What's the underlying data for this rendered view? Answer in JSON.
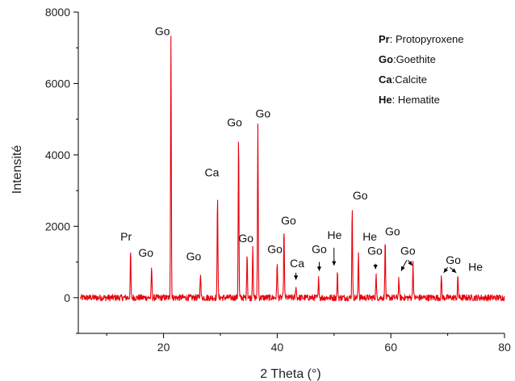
{
  "chart_data": {
    "type": "line",
    "xlabel": "2 Theta (°)",
    "ylabel": "Intensité",
    "xlim": [
      5,
      80
    ],
    "ylim": [
      -1000,
      8000
    ],
    "xticks": [
      "20",
      "40",
      "60",
      "80"
    ],
    "yticks": [
      "0",
      "2000",
      "4000",
      "6000",
      "8000"
    ],
    "xtick_values": [
      20,
      40,
      60,
      80
    ],
    "ytick_values": [
      0,
      2000,
      4000,
      6000,
      8000
    ],
    "line_color": "#e8000b",
    "baseline": 0,
    "noise_amplitude": 90,
    "legend": {
      "position": "top-right",
      "entries": [
        {
          "abbr": "Pr",
          "text": ": Protopyroxene"
        },
        {
          "abbr": "Go",
          "text": ":Goethite"
        },
        {
          "abbr": "Ca",
          "text": ":Calcite"
        },
        {
          "abbr": "He",
          "text": ": Hematite"
        }
      ]
    },
    "peaks": [
      {
        "x": 14.2,
        "y": 1280
      },
      {
        "x": 17.9,
        "y": 850
      },
      {
        "x": 21.3,
        "y": 7350
      },
      {
        "x": 26.5,
        "y": 750
      },
      {
        "x": 29.5,
        "y": 2950
      },
      {
        "x": 33.2,
        "y": 4600
      },
      {
        "x": 34.7,
        "y": 1300
      },
      {
        "x": 35.7,
        "y": 1500
      },
      {
        "x": 36.6,
        "y": 4850
      },
      {
        "x": 40.0,
        "y": 1050
      },
      {
        "x": 41.2,
        "y": 1950
      },
      {
        "x": 43.3,
        "y": 350
      },
      {
        "x": 47.3,
        "y": 550
      },
      {
        "x": 50.6,
        "y": 700
      },
      {
        "x": 53.2,
        "y": 2600
      },
      {
        "x": 54.3,
        "y": 1300
      },
      {
        "x": 57.4,
        "y": 650
      },
      {
        "x": 59.0,
        "y": 1650
      },
      {
        "x": 61.4,
        "y": 550
      },
      {
        "x": 63.9,
        "y": 1000
      },
      {
        "x": 68.9,
        "y": 600
      },
      {
        "x": 71.8,
        "y": 600
      }
    ],
    "annotations": [
      {
        "text": "Go",
        "x": 19.8,
        "y": 7350
      },
      {
        "text": "Pr",
        "x": 13.4,
        "y": 1600
      },
      {
        "text": "Go",
        "x": 16.9,
        "y": 1150
      },
      {
        "text": "Go",
        "x": 25.3,
        "y": 1050
      },
      {
        "text": "Ca",
        "x": 28.5,
        "y": 3400
      },
      {
        "text": "Go",
        "x": 32.5,
        "y": 4800
      },
      {
        "text": "Go",
        "x": 37.5,
        "y": 5050
      },
      {
        "text": "Go",
        "x": 34.5,
        "y": 1550
      },
      {
        "text": "Go",
        "x": 39.6,
        "y": 1250
      },
      {
        "text": "Go",
        "x": 42.0,
        "y": 2050
      },
      {
        "text": "Ca",
        "x": 43.5,
        "y": 850
      },
      {
        "text": "Go",
        "x": 47.4,
        "y": 1250
      },
      {
        "text": "He",
        "x": 50.1,
        "y": 1650
      },
      {
        "text": "Go",
        "x": 54.6,
        "y": 2750
      },
      {
        "text": "He",
        "x": 56.3,
        "y": 1600
      },
      {
        "text": "Go",
        "x": 57.2,
        "y": 1200
      },
      {
        "text": "Go",
        "x": 60.3,
        "y": 1750
      },
      {
        "text": "Go",
        "x": 63.0,
        "y": 1200
      },
      {
        "text": "Go",
        "x": 71.0,
        "y": 950
      },
      {
        "text": "He",
        "x": 74.9,
        "y": 750
      }
    ],
    "arrows": [
      {
        "x1": 43.3,
        "y1": 700,
        "x2": 43.3,
        "y2": 500
      },
      {
        "x1": 47.4,
        "y1": 1000,
        "x2": 47.4,
        "y2": 750
      },
      {
        "x1": 50.0,
        "y1": 1400,
        "x2": 50.0,
        "y2": 900
      },
      {
        "x1": 57.3,
        "y1": 950,
        "x2": 57.3,
        "y2": 800
      },
      {
        "x1": 62.8,
        "y1": 1050,
        "x2": 61.8,
        "y2": 750
      },
      {
        "x1": 63.0,
        "y1": 1050,
        "x2": 63.8,
        "y2": 900
      },
      {
        "x1": 70.0,
        "y1": 850,
        "x2": 69.3,
        "y2": 700
      },
      {
        "x1": 70.4,
        "y1": 850,
        "x2": 71.5,
        "y2": 700
      }
    ]
  }
}
